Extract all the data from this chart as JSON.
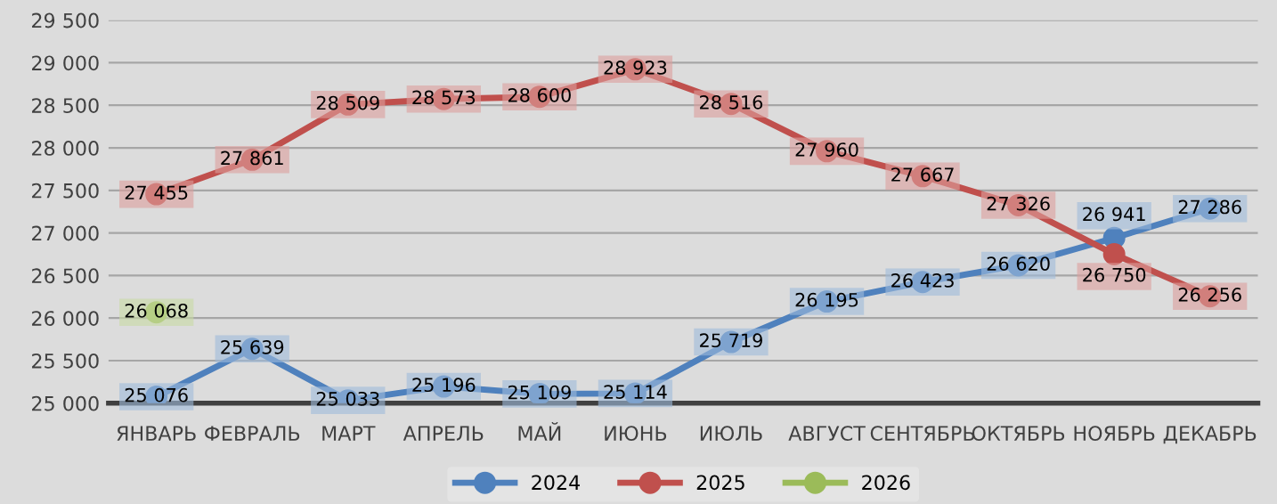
{
  "chart_data": {
    "type": "line",
    "categories": [
      "ЯНВАРЬ",
      "ФЕВРАЛЬ",
      "МАРТ",
      "АПРЕЛЬ",
      "МАЙ",
      "ИЮНЬ",
      "ИЮЛЬ",
      "АВГУСТ",
      "СЕНТЯБРЬ",
      "ОКТЯБРЬ",
      "НОЯБРЬ",
      "ДЕКАБРЬ"
    ],
    "series": [
      {
        "name": "2024",
        "color": "#4f81bd",
        "values": [
          25076,
          25639,
          25033,
          25196,
          25109,
          25114,
          25719,
          26195,
          26423,
          26620,
          26941,
          27286
        ]
      },
      {
        "name": "2025",
        "color": "#c0504d",
        "values": [
          27455,
          27861,
          28509,
          28573,
          28600,
          28923,
          28516,
          27960,
          27667,
          27326,
          26750,
          26256
        ]
      },
      {
        "name": "2026",
        "color": "#9bbb59",
        "values": [
          26068,
          null,
          null,
          null,
          null,
          null,
          null,
          null,
          null,
          null,
          null,
          null
        ]
      }
    ],
    "ylim": [
      25000,
      29500
    ],
    "yticks": [
      {
        "value": 25000,
        "label": "25 000"
      },
      {
        "value": 25500,
        "label": "25 500"
      },
      {
        "value": 26000,
        "label": "26 000"
      },
      {
        "value": 26500,
        "label": "26 500"
      },
      {
        "value": 27000,
        "label": "27 000"
      },
      {
        "value": 27500,
        "label": "27 500"
      },
      {
        "value": 28000,
        "label": "28 000"
      },
      {
        "value": 28500,
        "label": "28 500"
      },
      {
        "value": 29000,
        "label": "29 000"
      },
      {
        "value": 29500,
        "label": "29 500"
      }
    ],
    "grid": "y",
    "legend": "bottom",
    "marker": "circle",
    "line_style": "solid",
    "data_labels": true
  }
}
